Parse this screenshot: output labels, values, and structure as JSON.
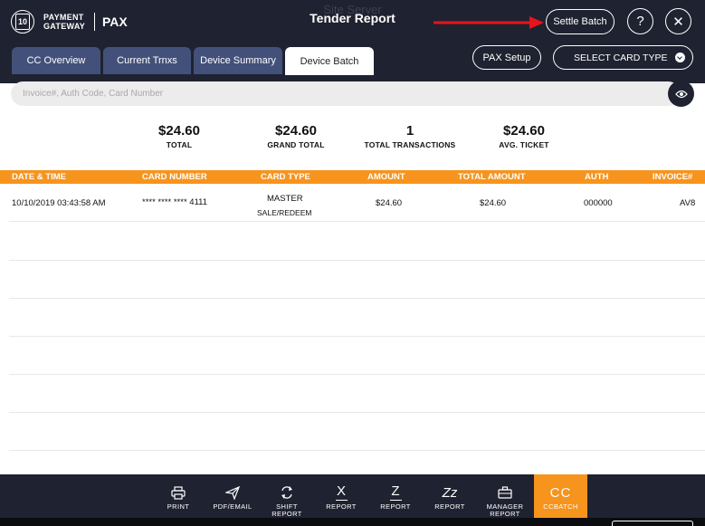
{
  "brand": {
    "badge_text": "10",
    "line1": "PAYMENT",
    "line2": "GATEWAY",
    "name": "PAX"
  },
  "header": {
    "ghost_title": "Site Server",
    "title": "Tender Report",
    "settle_label": "Settle Batch",
    "help_symbol": "?",
    "close_symbol": "✕"
  },
  "tabs": [
    {
      "label": "CC Overview",
      "active": false
    },
    {
      "label": "Current Trnxs",
      "active": false
    },
    {
      "label": "Device Summary",
      "active": false
    },
    {
      "label": "Device Batch",
      "active": true
    }
  ],
  "controls": {
    "pax_setup_label": "PAX Setup",
    "card_type_label": "SELECT CARD TYPE"
  },
  "search": {
    "placeholder": "Invoice#, Auth Code, Card Number",
    "value": ""
  },
  "summary": [
    {
      "value": "$24.60",
      "label": "TOTAL"
    },
    {
      "value": "$24.60",
      "label": "GRAND TOTAL"
    },
    {
      "value": "1",
      "label": "TOTAL TRANSACTIONS"
    },
    {
      "value": "$24.60",
      "label": "AVG. TICKET"
    }
  ],
  "table": {
    "columns": [
      "DATE & TIME",
      "CARD NUMBER",
      "CARD TYPE",
      "AMOUNT",
      "TOTAL AMOUNT",
      "AUTH",
      "INVOICE#"
    ],
    "rows": [
      {
        "datetime": "10/10/2019 03:43:58 AM",
        "card_number": "**** **** **** 4111",
        "card_type": "MASTER",
        "txn_type": "SALE/REDEEM",
        "amount": "$24.60",
        "total_amount": "$24.60",
        "auth": "000000",
        "invoice": "AV8"
      }
    ]
  },
  "footer": [
    {
      "icon": "printer-icon",
      "glyph": "",
      "label1": "PRINT",
      "label2": ""
    },
    {
      "icon": "send-icon",
      "glyph": "",
      "label1": "PDF/EMAIL",
      "label2": ""
    },
    {
      "icon": "shift-icon",
      "glyph": "",
      "label1": "SHIFT",
      "label2": "REPORT"
    },
    {
      "icon": "x-report-icon",
      "glyph": "X",
      "label1": "REPORT",
      "label2": ""
    },
    {
      "icon": "z-report-icon",
      "glyph": "Z",
      "label1": "REPORT",
      "label2": ""
    },
    {
      "icon": "zz-report-icon",
      "glyph": "Zz",
      "label1": "REPORT",
      "label2": ""
    },
    {
      "icon": "briefcase-icon",
      "glyph": "",
      "label1": "MANAGER",
      "label2": "REPORT"
    },
    {
      "icon": "cc-icon",
      "glyph": "CC",
      "label1": "CCBATCH",
      "label2": ""
    }
  ],
  "colors": {
    "header_bg": "#1f2230",
    "tab_bg": "#43517a",
    "accent_orange": "#f7941d",
    "annotation_arrow": "#e8141b"
  }
}
